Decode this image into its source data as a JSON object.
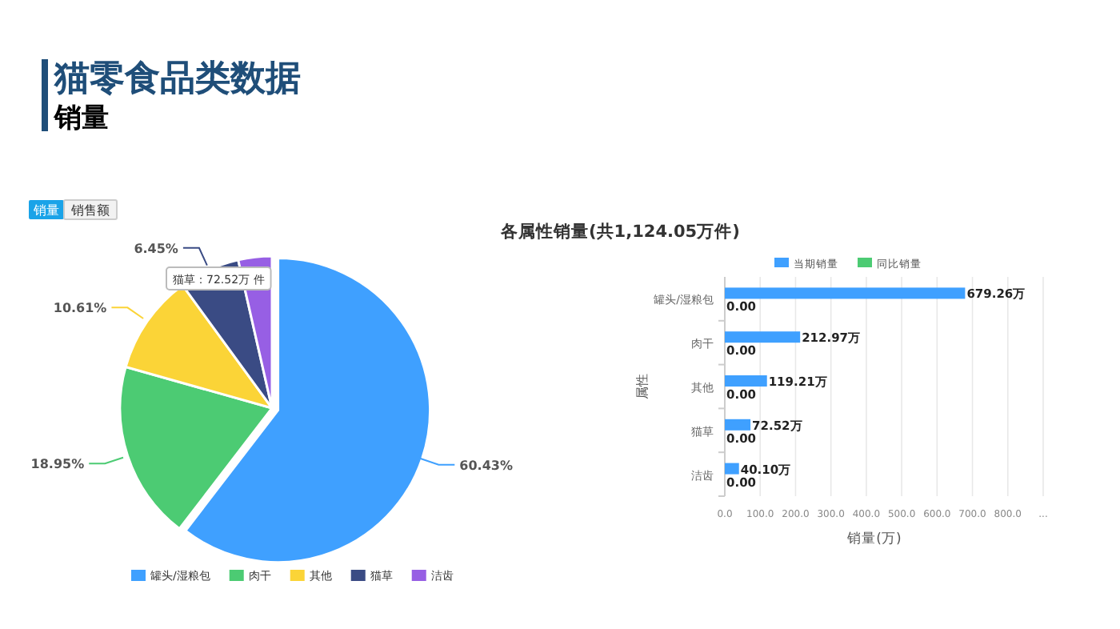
{
  "chart_data": [
    {
      "type": "pie",
      "title": "猫零食品类数据",
      "subtitle": "销量",
      "categories": [
        "罐头/湿粮包",
        "肉干",
        "其他",
        "猫草",
        "洁齿"
      ],
      "values": [
        60.43,
        18.95,
        10.61,
        6.45,
        3.57
      ],
      "colors": [
        "#3fa0ff",
        "#4ccb73",
        "#fbd437",
        "#3a4b84",
        "#975fe4"
      ],
      "value_labels": [
        "60.43%",
        "18.95%",
        "10.61%",
        "6.45%",
        null
      ],
      "legend": "bottom",
      "annotations": [
        "销量",
        "销售额",
        "猫草：72.52万 件"
      ]
    },
    {
      "type": "bar",
      "orientation": "horizontal",
      "title": "各属性销量(共1,124.05万件)",
      "xlabel": "销量(万)",
      "ylabel": "属性",
      "categories": [
        "罐头/湿粮包",
        "肉干",
        "其他",
        "猫草",
        "洁齿"
      ],
      "series": [
        {
          "name": "当期销量",
          "color": "#3fa0ff",
          "values": [
            679.26,
            212.97,
            119.21,
            72.52,
            40.1
          ],
          "value_labels": [
            "679.26万",
            "212.97万",
            "119.21万",
            "72.52万",
            "40.10万"
          ]
        },
        {
          "name": "同比销量",
          "color": "#4ccb73",
          "values": [
            0,
            0,
            0,
            0,
            0
          ],
          "value_labels": [
            "0.00",
            "0.00",
            "0.00",
            "0.00",
            "0.00"
          ]
        }
      ],
      "xlim": [
        0,
        900
      ],
      "xticks": [
        {
          "value": 0,
          "label": "0.0"
        },
        {
          "value": 100,
          "label": "100.0"
        },
        {
          "value": 200,
          "label": "200.0"
        },
        {
          "value": 300,
          "label": "300.0"
        },
        {
          "value": 400,
          "label": "400.0"
        },
        {
          "value": 500,
          "label": "500.0"
        },
        {
          "value": 600,
          "label": "600.0"
        },
        {
          "value": 700,
          "label": "700.0"
        },
        {
          "value": 800,
          "label": "800.0"
        },
        {
          "value": 900,
          "label": "..."
        }
      ],
      "grid": "x",
      "legend": "top"
    }
  ]
}
